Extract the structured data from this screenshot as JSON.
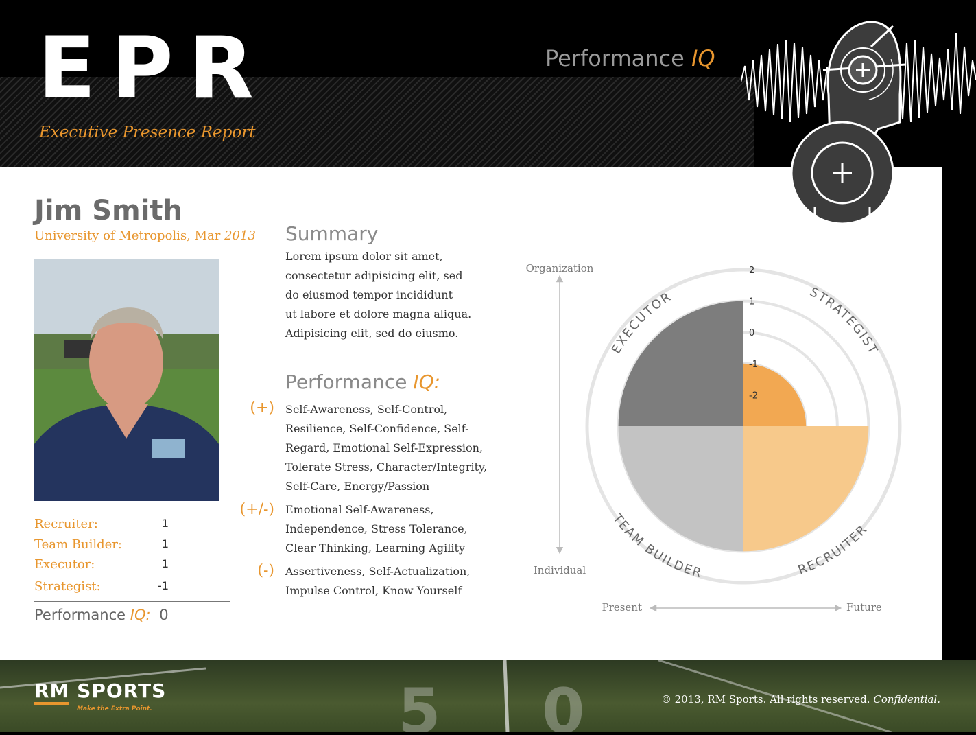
{
  "header": {
    "title": "EPR",
    "subtitle": "Executive Presence Report",
    "performance_label": "Performance",
    "iq_label": "IQ"
  },
  "person": {
    "name": "Jim Smith",
    "affiliation": "University of Metropolis, Mar",
    "year": "2013"
  },
  "stats": [
    {
      "label": "Recruiter:",
      "value": "1"
    },
    {
      "label": "Team Builder:",
      "value": "1"
    },
    {
      "label": "Executor:",
      "value": "1"
    },
    {
      "label": "Strategist:",
      "value": "-1"
    }
  ],
  "total": {
    "label": "Performance",
    "iq": "IQ:",
    "value": "0"
  },
  "summary": {
    "heading": "Summary",
    "lines": [
      "Lorem ipsum dolor sit amet,",
      "consectetur adipisicing elit, sed",
      "do eiusmod tempor incididunt",
      "ut labore et dolore magna aliqua.",
      "Adipisicing elit, sed do eiusmo."
    ]
  },
  "performance_iq": {
    "heading": "Performance",
    "iq": "IQ:",
    "groups": [
      {
        "sign": "(+)",
        "lines": [
          "Self-Awareness, Self-Control,",
          "Resilience, Self-Confidence, Self-",
          "Regard, Emotional Self-Expression,",
          "Tolerate Stress, Character/Integrity,",
          "Self-Care, Energy/Passion"
        ]
      },
      {
        "sign": "(+/-)",
        "lines": [
          "Emotional Self-Awareness,",
          "Independence, Stress Tolerance,",
          "Clear Thinking, Learning Agility"
        ]
      },
      {
        "sign": "(-)",
        "lines": [
          "Assertiveness, Self-Actualization,",
          "Impulse Control, Know Yourself"
        ]
      }
    ]
  },
  "chart_data": {
    "type": "polar-area",
    "rings": [
      -2,
      -1,
      0,
      1,
      2
    ],
    "tick_labels": [
      "2",
      "1",
      "0",
      "-1",
      "-2"
    ],
    "quadrants": [
      {
        "name": "EXECUTOR",
        "value": 1,
        "color": "#7d7d7d"
      },
      {
        "name": "STRATEGIST",
        "value": -1,
        "color": "#f2a852"
      },
      {
        "name": "RECRUITER",
        "value": 1,
        "color": "#f7c98b"
      },
      {
        "name": "TEAM BUILDER",
        "value": 1,
        "color": "#c3c3c3"
      }
    ],
    "axes": {
      "vertical_top": "Organization",
      "vertical_bottom": "Individual",
      "horizontal_left": "Present",
      "horizontal_right": "Future"
    }
  },
  "footer": {
    "logo": "RM SPORTS",
    "tagline": "Make the Extra Point.",
    "copyright": "© 2013, RM Sports. All rights reserved.",
    "confidential": "Confidential."
  },
  "colors": {
    "accent": "#e8962e",
    "background": "#000000",
    "panel": "#ffffff"
  },
  "icons": [
    "sound-wave-icon",
    "knight-helmet-icon",
    "plus-icon"
  ]
}
